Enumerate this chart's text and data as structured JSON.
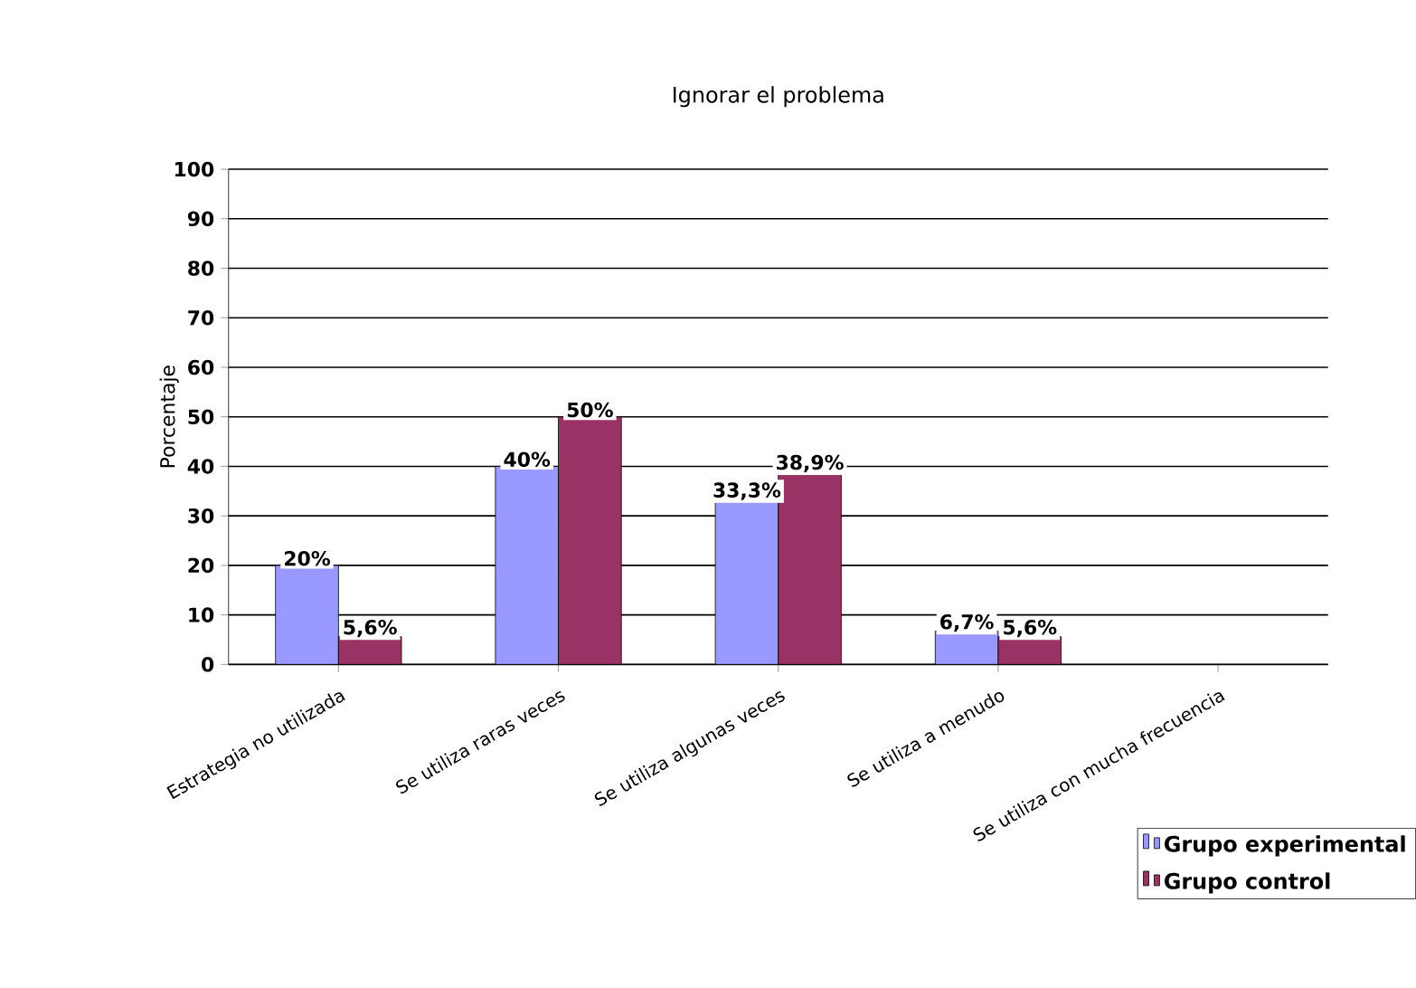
{
  "chart_data": {
    "type": "bar",
    "title": "Ignorar el problema",
    "ylabel": "Porcentaje",
    "categories": [
      "Estrategia no utilizada",
      "Se utiliza raras veces",
      "Se utiliza algunas veces",
      "Se utiliza a menudo",
      "Se utiliza con mucha frecuencia"
    ],
    "series": [
      {
        "name": "Grupo experimental",
        "color": "#9999ff",
        "values": [
          20,
          40,
          33.3,
          6.7,
          null
        ],
        "value_labels": [
          "20%",
          "40%",
          "33,3%",
          "6,7%",
          null
        ]
      },
      {
        "name": "Grupo control",
        "color": "#993366",
        "values": [
          5.6,
          50,
          38.9,
          5.6,
          null
        ],
        "value_labels": [
          "5,6%",
          "50%",
          "38,9%",
          "5,6%",
          null
        ]
      }
    ],
    "ylim": [
      0,
      100
    ],
    "yticks": [
      0,
      10,
      20,
      30,
      40,
      50,
      60,
      70,
      80,
      90,
      100
    ],
    "grid": "y",
    "legend": "bottom right"
  }
}
